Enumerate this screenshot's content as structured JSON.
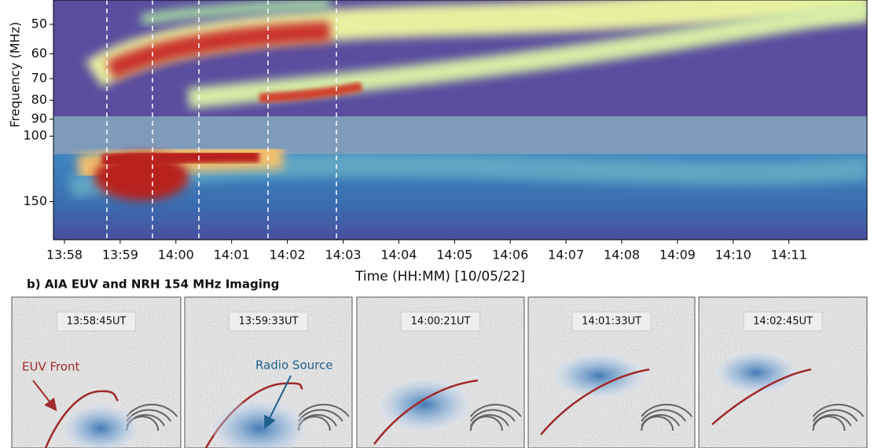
{
  "panel_a": {
    "y_label": "Frequency (MHz)",
    "yticks": [
      50,
      60,
      70,
      80,
      90,
      100,
      150
    ],
    "ylim": [
      43,
      190
    ],
    "log_scale": true,
    "xticks": [
      "13:58",
      "13:59",
      "14:00",
      "14:01",
      "14:02",
      "14:03",
      "14:04",
      "14:05",
      "14:06",
      "14:07",
      "14:08",
      "14:09",
      "14:10",
      "14:11"
    ],
    "x_label": "Time (HH:MM) [10/05/22]"
  },
  "panel_b": {
    "title": "b) AIA EUV and NRH 154 MHz Imaging",
    "frames": [
      "13:58:45UT",
      "13:59:33UT",
      "14:00:21UT",
      "14:01:33UT",
      "14:02:45UT"
    ],
    "annotations": [
      "EUV Front",
      "Radio Source"
    ]
  }
}
